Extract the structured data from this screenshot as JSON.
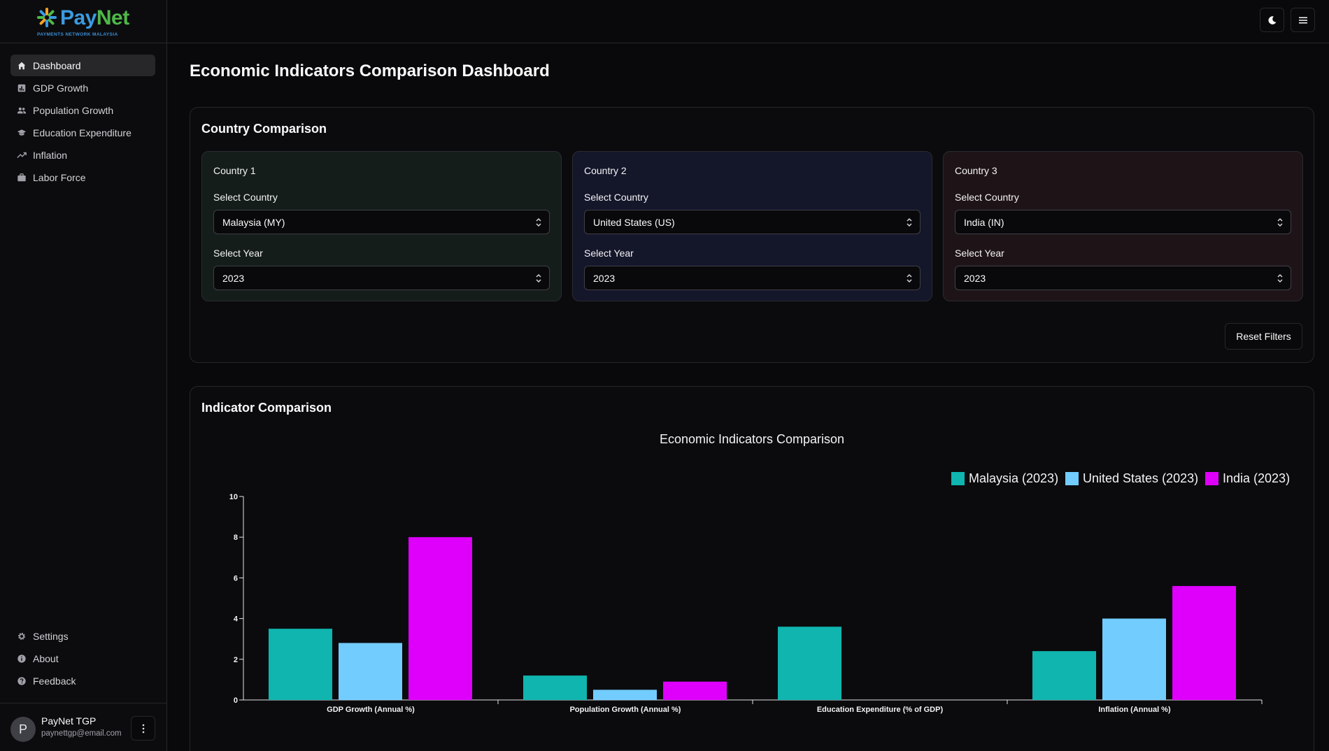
{
  "brand": {
    "name_part1": "Pay",
    "name_part2": "Net",
    "tagline": "PAYMENTS NETWORK MALAYSIA"
  },
  "sidebar": {
    "items": [
      {
        "label": "Dashboard",
        "icon": "home-icon",
        "active": true
      },
      {
        "label": "GDP Growth",
        "icon": "bar-chart-icon"
      },
      {
        "label": "Population Growth",
        "icon": "users-icon"
      },
      {
        "label": "Education Expenditure",
        "icon": "graduation-cap-icon"
      },
      {
        "label": "Inflation",
        "icon": "trending-up-icon"
      },
      {
        "label": "Labor Force",
        "icon": "briefcase-icon"
      }
    ],
    "bottom_items": [
      {
        "label": "Settings",
        "icon": "gear-icon"
      },
      {
        "label": "About",
        "icon": "info-icon"
      },
      {
        "label": "Feedback",
        "icon": "help-circle-icon"
      }
    ],
    "user": {
      "initial": "P",
      "name": "PayNet TGP",
      "email": "paynettgp@email.com"
    }
  },
  "topbar": {
    "theme_toggle_icon": "moon-icon",
    "menu_icon": "hamburger-icon"
  },
  "page": {
    "title": "Economic Indicators Comparison Dashboard"
  },
  "comparison": {
    "title": "Country Comparison",
    "countries": [
      {
        "title": "Country 1",
        "country_label": "Select Country",
        "country_value": "Malaysia (MY)",
        "year_label": "Select Year",
        "year_value": "2023",
        "tint": "#141d1a"
      },
      {
        "title": "Country 2",
        "country_label": "Select Country",
        "country_value": "United States (US)",
        "year_label": "Select Year",
        "year_value": "2023",
        "tint": "#14162a"
      },
      {
        "title": "Country 3",
        "country_label": "Select Country",
        "country_value": "India (IN)",
        "year_label": "Select Year",
        "year_value": "2023",
        "tint": "#1e1417"
      }
    ],
    "reset_label": "Reset Filters"
  },
  "indicator": {
    "title": "Indicator Comparison"
  },
  "chart_data": {
    "type": "bar",
    "title": "Economic Indicators Comparison",
    "categories": [
      "GDP Growth (Annual %)",
      "Population Growth (Annual %)",
      "Education Expenditure (% of GDP)",
      "Inflation (Annual %)"
    ],
    "series": [
      {
        "name": "Malaysia (2023)",
        "color": "#0fb5ae",
        "values": [
          3.5,
          1.2,
          3.6,
          2.4
        ]
      },
      {
        "name": "United States (2023)",
        "color": "#72cdfe",
        "values": [
          2.8,
          0.5,
          0,
          4.0
        ]
      },
      {
        "name": "India (2023)",
        "color": "#de00fa",
        "values": [
          8.0,
          0.9,
          0,
          5.6
        ]
      }
    ],
    "ylim": [
      0,
      10
    ],
    "yticks": [
      0,
      2,
      4,
      6,
      8,
      10
    ],
    "legend": "top-right",
    "grid": false
  }
}
